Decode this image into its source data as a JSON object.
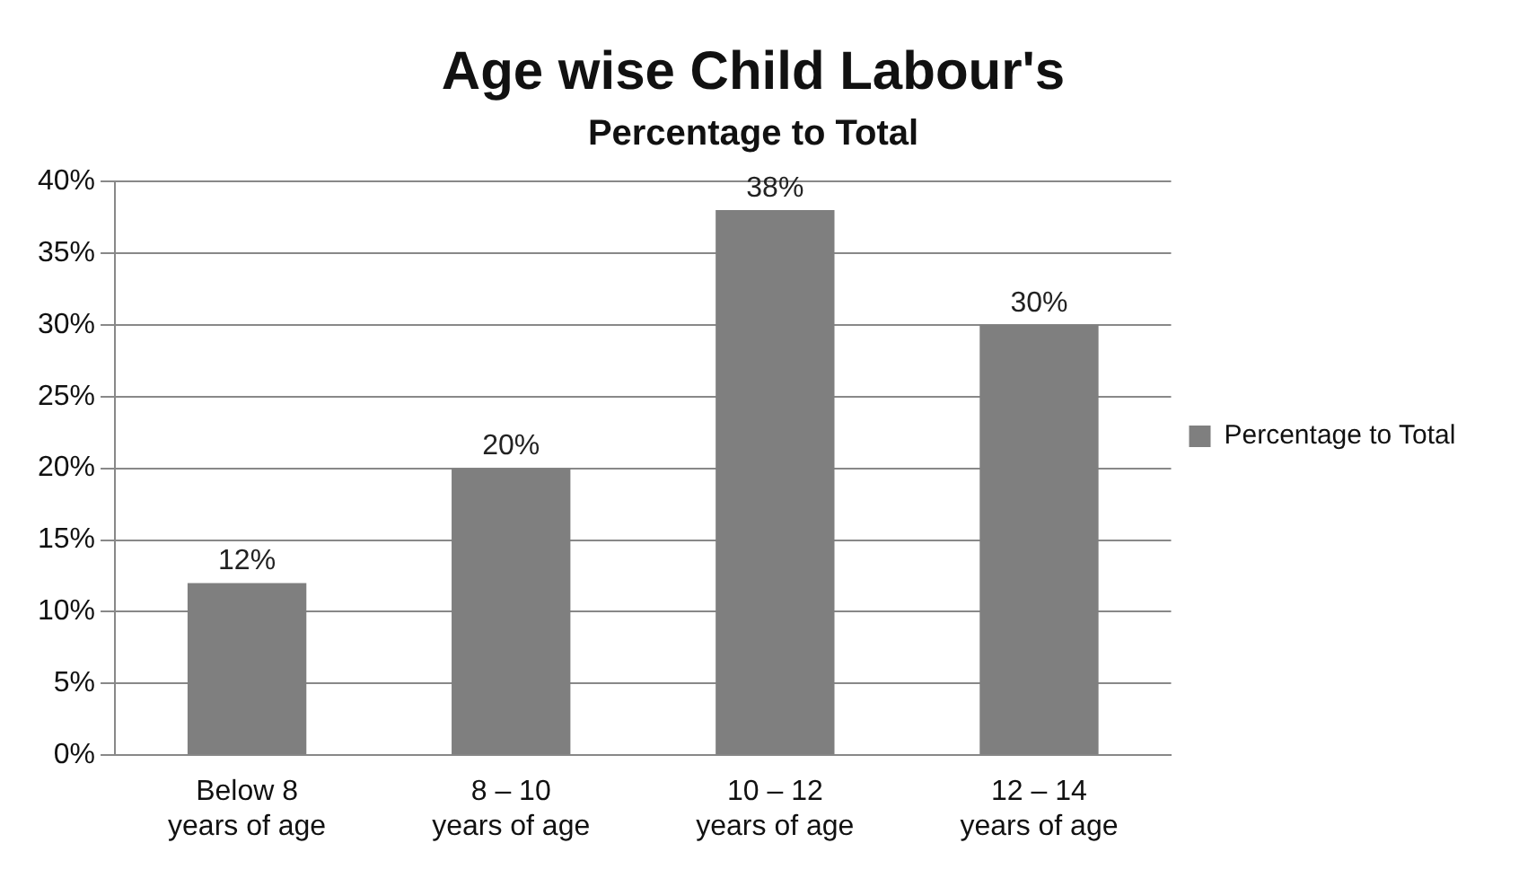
{
  "chart_data": {
    "type": "bar",
    "title": "Age wise Child Labour's",
    "subtitle": "Percentage to Total",
    "categories": [
      "Below 8\nyears of age",
      "8 – 10\nyears of age",
      "10 – 12\nyears of age",
      "12 – 14\nyears of age"
    ],
    "series": [
      {
        "name": "Percentage to Total",
        "color": "#7f7f7f",
        "values": [
          12,
          20,
          38,
          30
        ],
        "value_labels": [
          "12%",
          "20%",
          "38%",
          "30%"
        ]
      }
    ],
    "ylim": [
      0,
      40
    ],
    "yticks": [
      {
        "value": 0,
        "label": "0%"
      },
      {
        "value": 5,
        "label": "5%"
      },
      {
        "value": 10,
        "label": "10%"
      },
      {
        "value": 15,
        "label": "15%"
      },
      {
        "value": 20,
        "label": "20%"
      },
      {
        "value": 25,
        "label": "25%"
      },
      {
        "value": 30,
        "label": "30%"
      },
      {
        "value": 35,
        "label": "35%"
      },
      {
        "value": 40,
        "label": "40%"
      }
    ],
    "grid": "y",
    "legend": "right"
  }
}
